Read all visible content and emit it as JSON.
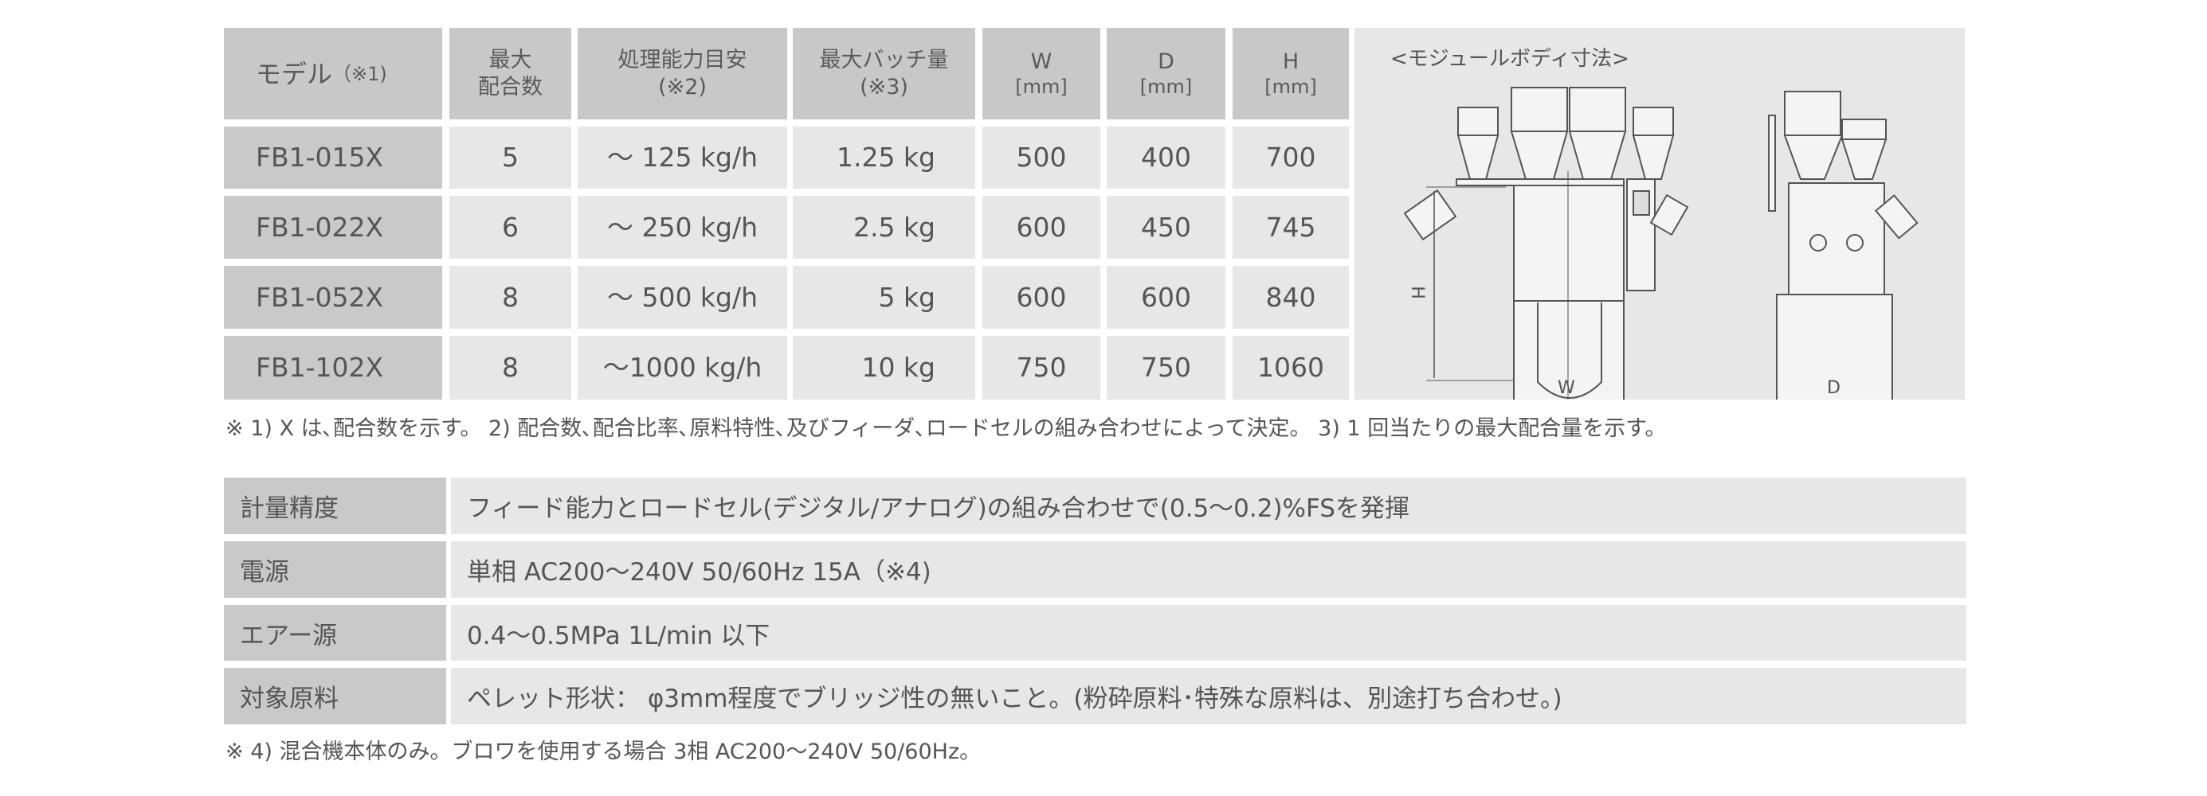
{
  "spec_table": {
    "headers": [
      {
        "main": "モデル",
        "sub": "（※1)"
      },
      {
        "main": "最大",
        "sub": "配合数"
      },
      {
        "main": "処理能力目安",
        "sub": "(※2)"
      },
      {
        "main": "最大バッチ量",
        "sub": "(※3)"
      },
      {
        "main": "W",
        "sub": "[mm]"
      },
      {
        "main": "D",
        "sub": "[mm]"
      },
      {
        "main": "H",
        "sub": "[mm]"
      }
    ],
    "rows": [
      [
        "FB1-015X",
        "5",
        "～ 125 kg/h",
        "1.25 kg",
        "500",
        "400",
        "700"
      ],
      [
        "FB1-022X",
        "6",
        "～ 250 kg/h",
        "2.5 kg",
        "600",
        "450",
        "745"
      ],
      [
        "FB1-052X",
        "8",
        "～ 500 kg/h",
        "5 kg",
        "600",
        "600",
        "840"
      ],
      [
        "FB1-102X",
        "8",
        "～1000 kg/h",
        "10 kg",
        "750",
        "750",
        "1060"
      ]
    ]
  },
  "diagram": {
    "title": "<モジュールボディ寸法>",
    "label_h": "H",
    "label_w": "W",
    "label_d": "D"
  },
  "footnote1": "※ 1) X は､配合数を示す。  2) 配合数､配合比率､原料特性､及びフィーダ､ロードセルの組み合わせによって決定。  3) 1 回当たりの最大配合量を示す。",
  "specs": [
    {
      "label": "計量精度",
      "value": "フィード能力とロードセル(デジタル/アナログ)の組み合わせで(0.5～0.2)%FSを発揮"
    },
    {
      "label": "電源",
      "value": "単相  AC200～240V  50/60Hz  15A（※4)"
    },
    {
      "label": "エアー源",
      "value": "0.4～0.5MPa  1L/min  以下"
    },
    {
      "label": "対象原料",
      "value": "ペレット形状： φ3mm程度でブリッジ性の無いこと。(粉砕原料･特殊な原料は、別途打ち合わせ。)"
    }
  ],
  "footnote2": "※ 4) 混合機本体のみ。ブロワを使用する場合 3相  AC200～240V 50/60Hz。"
}
